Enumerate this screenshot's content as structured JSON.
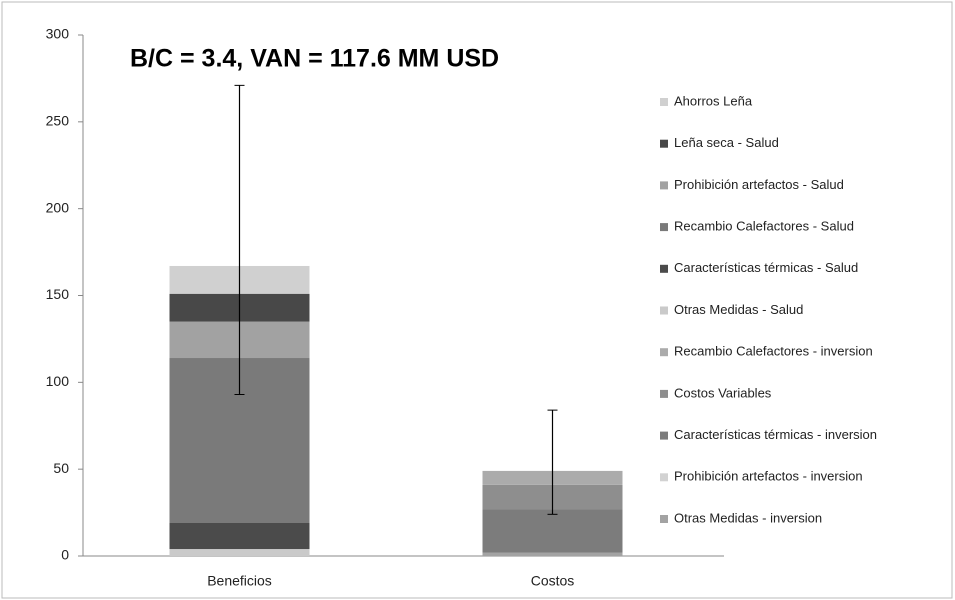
{
  "chart_data": {
    "type": "stacked_bar",
    "annotation": "B/C = 3.4, VAN = 117.6 MM USD",
    "categories": [
      "Beneficios",
      "Costos"
    ],
    "ylim": [
      0,
      300
    ],
    "yticks": [
      0,
      50,
      100,
      150,
      200,
      250,
      300
    ],
    "series": [
      {
        "name": "Otras Medidas - inversion",
        "color": "#a3a3a3",
        "values": [
          0,
          2
        ]
      },
      {
        "name": "Prohibición artefactos - inversion",
        "color": "#d2d2d2",
        "values": [
          0,
          0
        ]
      },
      {
        "name": "Características térmicas - inversion",
        "color": "#7c7c7c",
        "values": [
          0,
          25
        ]
      },
      {
        "name": "Costos Variables",
        "color": "#8e8e8e",
        "values": [
          0,
          14
        ]
      },
      {
        "name": "Recambio Calefactores - inversion",
        "color": "#ababab",
        "values": [
          0,
          8
        ]
      },
      {
        "name": "Otras Medidas - Salud",
        "color": "#cacaca",
        "values": [
          4,
          0
        ]
      },
      {
        "name": "Características térmicas - Salud",
        "color": "#4b4b4b",
        "values": [
          15,
          0
        ]
      },
      {
        "name": "Recambio Calefactores - Salud",
        "color": "#7a7a7a",
        "values": [
          95,
          0
        ]
      },
      {
        "name": "Prohibición artefactos - Salud",
        "color": "#a2a2a2",
        "values": [
          21,
          0
        ]
      },
      {
        "name": "Leña seca - Salud",
        "color": "#484848",
        "values": [
          16,
          0
        ]
      },
      {
        "name": "Ahorros Leña",
        "color": "#d0d0d0",
        "values": [
          16,
          0
        ]
      }
    ],
    "error_low": [
      93,
      24
    ],
    "error_high": [
      271,
      84
    ]
  }
}
